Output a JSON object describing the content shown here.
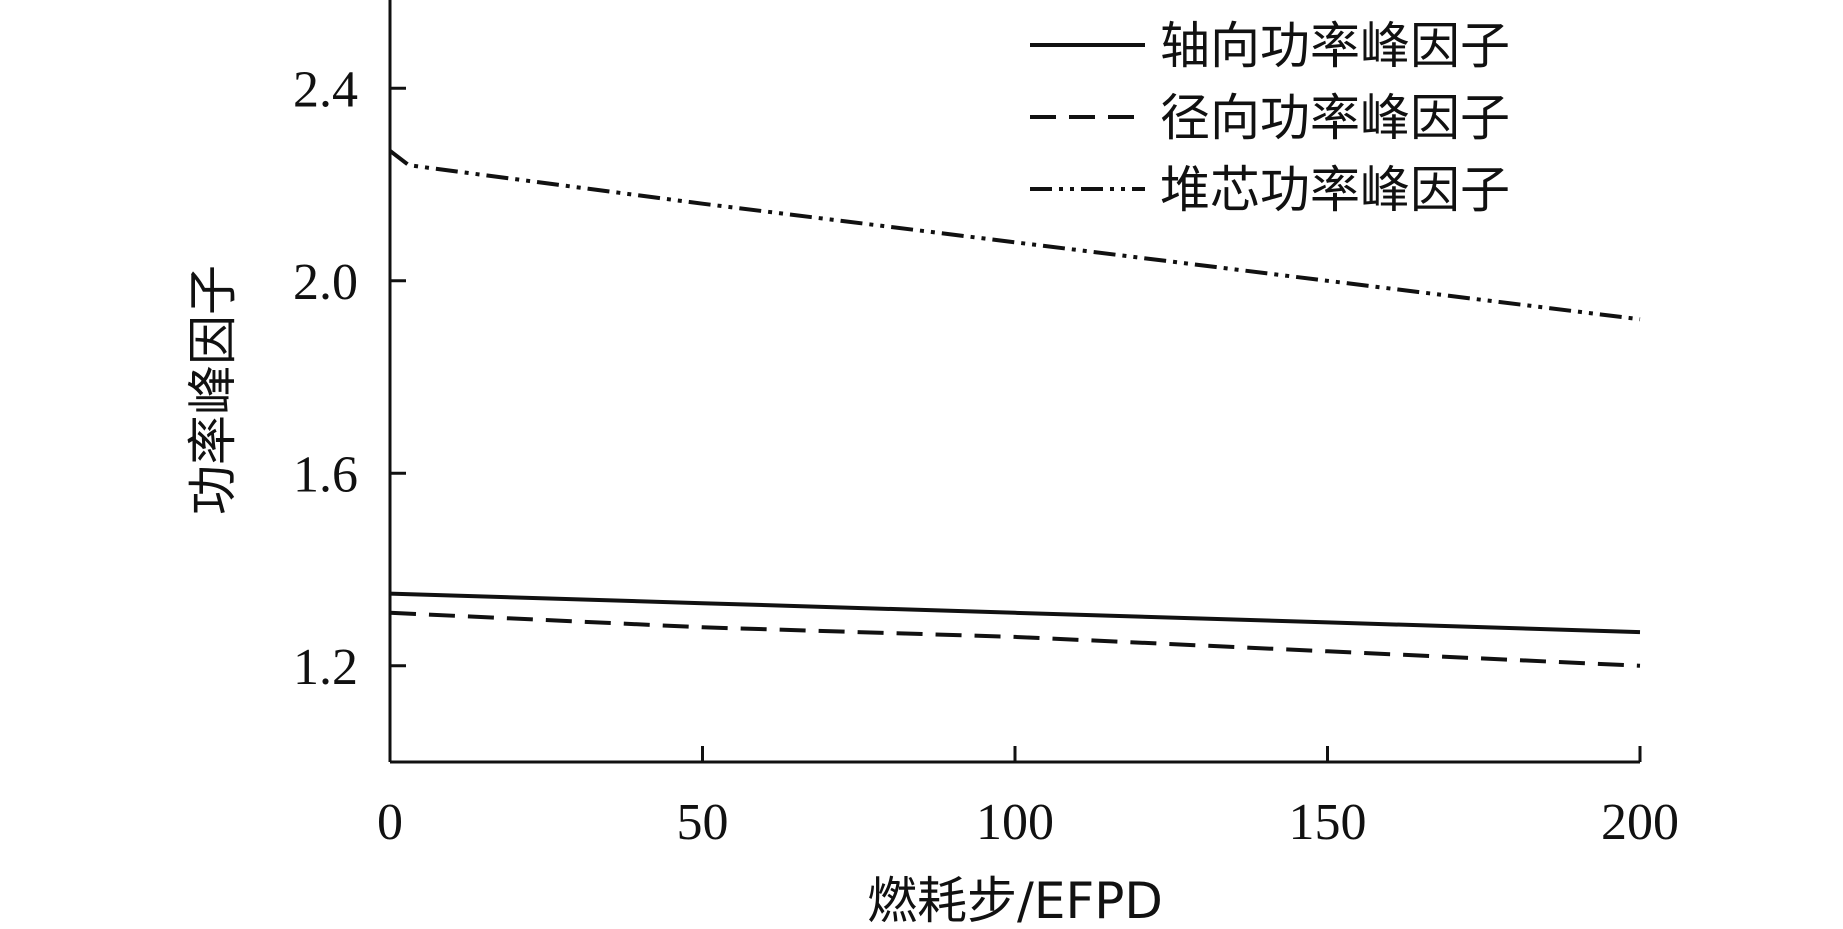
{
  "chart_data": {
    "type": "line",
    "title": "",
    "xlabel": "燃耗步/EFPD",
    "ylabel": "功率峰因子",
    "xlim": [
      0,
      200
    ],
    "ylim": [
      1.0,
      2.6
    ],
    "xticks": [
      0,
      50,
      100,
      150,
      200
    ],
    "yticks": [
      1.2,
      1.6,
      2.0,
      2.4
    ],
    "xtick_labels": [
      "0",
      "50",
      "100",
      "150",
      "200"
    ],
    "ytick_labels": [
      "1.2",
      "1.6",
      "2.0",
      "2.4"
    ],
    "legend_position": "top-right",
    "grid": false,
    "series": [
      {
        "name": "轴向功率峰因子",
        "style": "solid",
        "x": [
          0,
          50,
          100,
          150,
          200
        ],
        "values": [
          1.35,
          1.33,
          1.31,
          1.29,
          1.27
        ]
      },
      {
        "name": "径向功率峰因子",
        "style": "dashed",
        "x": [
          0,
          50,
          100,
          150,
          200
        ],
        "values": [
          1.31,
          1.28,
          1.26,
          1.23,
          1.2
        ]
      },
      {
        "name": "堆芯功率峰因子",
        "style": "dash-dot-dot",
        "x": [
          0,
          3,
          50,
          100,
          150,
          200
        ],
        "values": [
          2.27,
          2.24,
          2.16,
          2.08,
          2.0,
          1.92
        ]
      }
    ]
  },
  "colors": {
    "line": "#111111",
    "background": "#ffffff"
  }
}
